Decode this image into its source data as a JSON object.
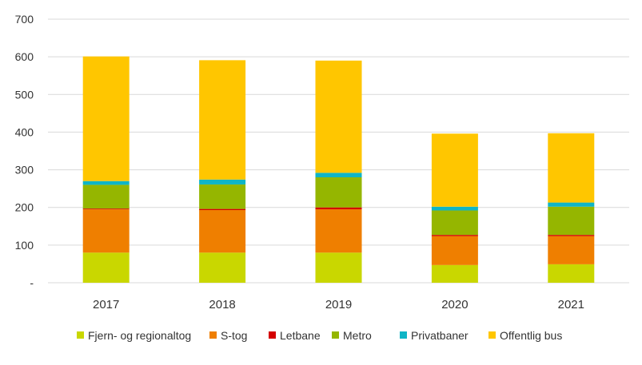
{
  "chart_data": {
    "type": "bar",
    "stacked": true,
    "categories": [
      "2017",
      "2018",
      "2019",
      "2020",
      "2021"
    ],
    "ylim": [
      0,
      700
    ],
    "yticks": [
      {
        "value": 0,
        "label": "-"
      },
      {
        "value": 100,
        "label": "100"
      },
      {
        "value": 200,
        "label": "200"
      },
      {
        "value": 300,
        "label": "300"
      },
      {
        "value": 400,
        "label": "400"
      },
      {
        "value": 500,
        "label": "500"
      },
      {
        "value": 600,
        "label": "600"
      },
      {
        "value": 700,
        "label": "700"
      }
    ],
    "grid": true,
    "legend_position": "bottom",
    "title": "",
    "xlabel": "",
    "ylabel": "",
    "series": [
      {
        "name": "Fjern- og regionaltog",
        "color": "#c9d700",
        "values": [
          80,
          80,
          80,
          47,
          49
        ]
      },
      {
        "name": "S-tog",
        "color": "#ef7f00",
        "values": [
          115,
          113,
          115,
          77,
          75
        ]
      },
      {
        "name": "Letbane",
        "color": "#d40000",
        "values": [
          2,
          3,
          5,
          3,
          3
        ]
      },
      {
        "name": "Metro",
        "color": "#95b600",
        "values": [
          63,
          65,
          80,
          65,
          75
        ]
      },
      {
        "name": "Privatbaner",
        "color": "#0fb5c6",
        "values": [
          10,
          13,
          12,
          10,
          11
        ]
      },
      {
        "name": "Offentlig bus",
        "color": "#ffc600",
        "values": [
          331,
          317,
          298,
          194,
          184
        ]
      }
    ]
  }
}
